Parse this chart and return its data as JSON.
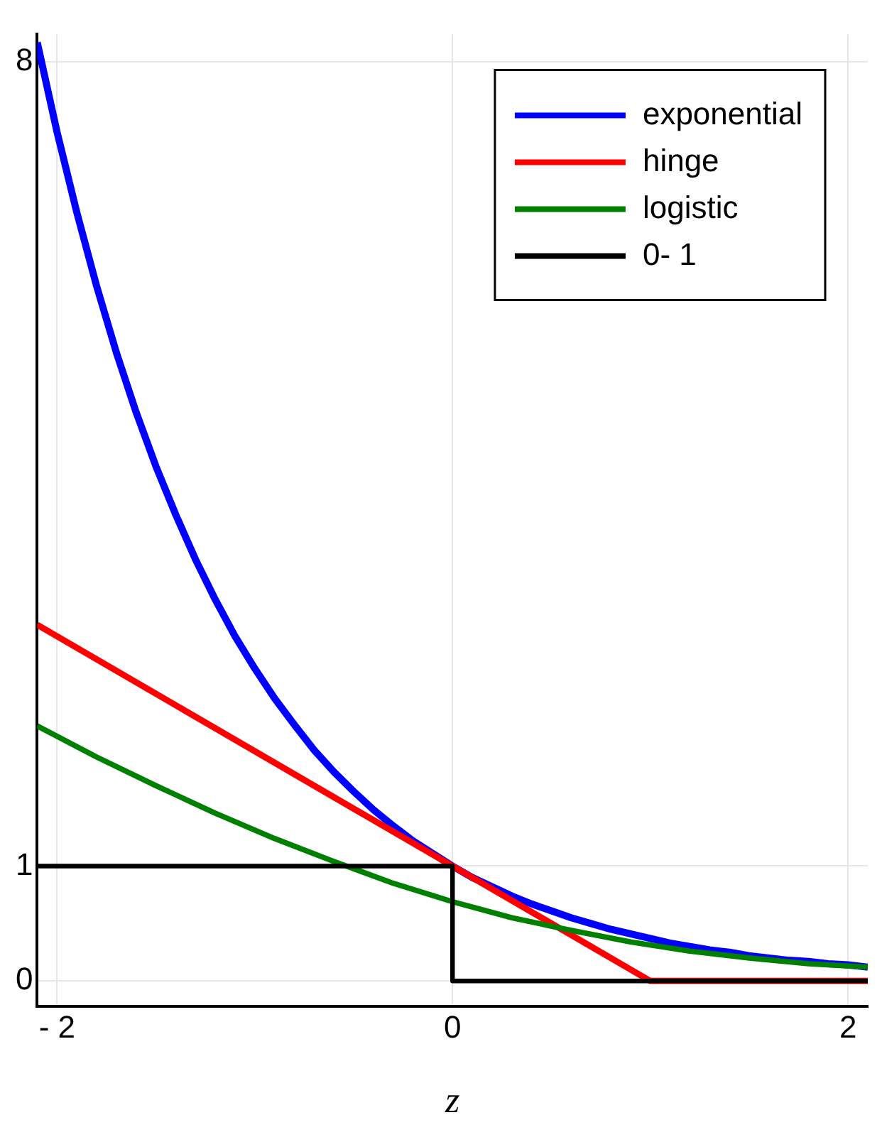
{
  "chart_data": {
    "type": "line",
    "xlabel": "z",
    "xlim": [
      -2.1,
      2.1
    ],
    "ylim": [
      -0.22,
      8.24
    ],
    "xticks": [
      {
        "value": -2,
        "label": "- 2"
      },
      0,
      2
    ],
    "yticks": [
      0,
      1,
      8
    ],
    "grid": true,
    "legend": "top right",
    "marker": "none",
    "line_style": "solid",
    "series": [
      {
        "name": "exponential",
        "color": "#0000ff",
        "x": [
          -2.1,
          -2.0,
          -1.9,
          -1.8,
          -1.7,
          -1.6,
          -1.5,
          -1.4,
          -1.3,
          -1.2,
          -1.1,
          -1.0,
          -0.9,
          -0.8,
          -0.7,
          -0.6,
          -0.5,
          -0.4,
          -0.3,
          -0.2,
          -0.1,
          0,
          0.1,
          0.2,
          0.3,
          0.4,
          0.5,
          0.6,
          0.7,
          0.8,
          0.9,
          1.0,
          1.1,
          1.2,
          1.3,
          1.4,
          1.5,
          1.6,
          1.7,
          1.8,
          1.9,
          2.0,
          2.1
        ],
        "values": [
          8.17,
          7.39,
          6.69,
          6.05,
          5.47,
          4.95,
          4.48,
          4.06,
          3.67,
          3.32,
          3.0,
          2.72,
          2.46,
          2.23,
          2.01,
          1.82,
          1.65,
          1.49,
          1.35,
          1.22,
          1.11,
          1.0,
          0.9,
          0.82,
          0.74,
          0.67,
          0.61,
          0.55,
          0.5,
          0.45,
          0.41,
          0.37,
          0.33,
          0.3,
          0.27,
          0.25,
          0.22,
          0.2,
          0.18,
          0.17,
          0.15,
          0.14,
          0.12
        ]
      },
      {
        "name": "hinge",
        "color": "#ff0000",
        "x": [
          -2.1,
          1.0,
          2.1
        ],
        "values": [
          3.1,
          0,
          0
        ]
      },
      {
        "name": "logistic",
        "color": "#008000",
        "x": [
          -2.1,
          -1.8,
          -1.5,
          -1.2,
          -0.9,
          -0.6,
          -0.3,
          0,
          0.3,
          0.6,
          0.9,
          1.2,
          1.5,
          1.8,
          2.1
        ],
        "values": [
          2.22,
          1.95,
          1.7,
          1.46,
          1.24,
          1.04,
          0.85,
          0.69,
          0.55,
          0.44,
          0.34,
          0.26,
          0.2,
          0.15,
          0.12
        ]
      },
      {
        "name": "0- 1",
        "color": "#000000",
        "x": [
          -2.1,
          0,
          0,
          2.1
        ],
        "values": [
          1,
          1,
          0,
          0
        ]
      }
    ]
  }
}
